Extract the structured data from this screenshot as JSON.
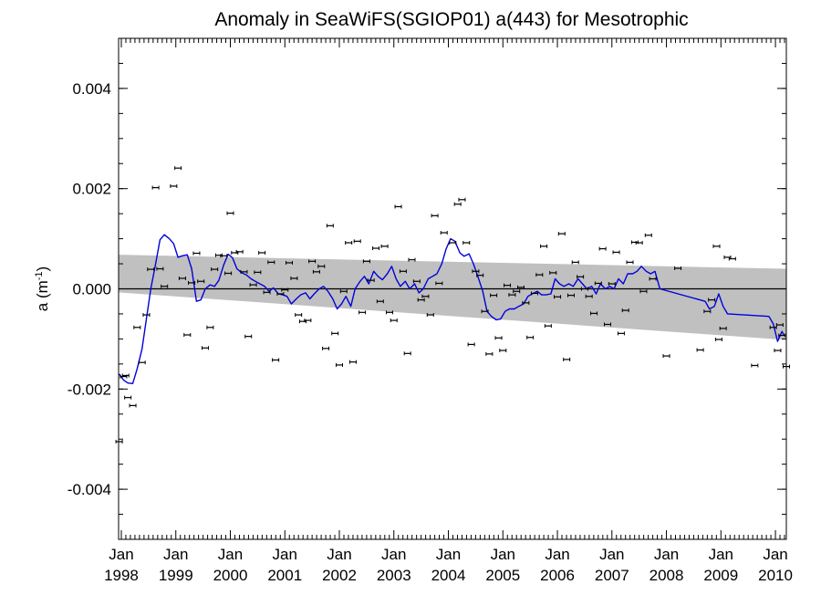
{
  "chart_data": {
    "type": "scatter",
    "title": "Anomaly in SeaWiFS(SGIOP01) a(443) for Mesotrophic",
    "ylabel": "a (m",
    "ylabel_sup": "-1",
    "ylabel_close": ")",
    "ylim": [
      -0.005,
      0.005
    ],
    "xlim": [
      1997.95,
      2010.2
    ],
    "y_ticks": [
      {
        "value": 0.004,
        "label": "0.004"
      },
      {
        "value": 0.002,
        "label": "0.002"
      },
      {
        "value": 0.0,
        "label": "0.000"
      },
      {
        "value": -0.002,
        "label": "-0.002"
      },
      {
        "value": -0.004,
        "label": "-0.004"
      }
    ],
    "x_ticks": [
      {
        "value": 1998,
        "month": "Jan",
        "year": "1998"
      },
      {
        "value": 1999,
        "month": "Jan",
        "year": "1999"
      },
      {
        "value": 2000,
        "month": "Jan",
        "year": "2000"
      },
      {
        "value": 2001,
        "month": "Jan",
        "year": "2001"
      },
      {
        "value": 2002,
        "month": "Jan",
        "year": "2002"
      },
      {
        "value": 2003,
        "month": "Jan",
        "year": "2003"
      },
      {
        "value": 2004,
        "month": "Jan",
        "year": "2004"
      },
      {
        "value": 2005,
        "month": "Jan",
        "year": "2005"
      },
      {
        "value": 2006,
        "month": "Jan",
        "year": "2006"
      },
      {
        "value": 2007,
        "month": "Jan",
        "year": "2007"
      },
      {
        "value": 2008,
        "month": "Jan",
        "year": "2008"
      },
      {
        "value": 2009,
        "month": "Jan",
        "year": "2009"
      },
      {
        "value": 2010,
        "month": "Jan",
        "year": "2010"
      }
    ],
    "colors": {
      "smooth_line": "#0000dd",
      "band": "#c0c0c0",
      "points": "#000000",
      "zero_line": "#000000"
    },
    "confidence_band": {
      "x": [
        1997.95,
        2010.2
      ],
      "upper": [
        0.00068,
        0.0004
      ],
      "lower": [
        -7e-05,
        -0.00102
      ]
    },
    "points": [
      {
        "x": 1997.96,
        "y": -0.00305
      },
      {
        "x": 1998.04,
        "y": -0.00175
      },
      {
        "x": 1998.08,
        "y": -0.00173
      },
      {
        "x": 1998.12,
        "y": -0.00217
      },
      {
        "x": 1998.21,
        "y": -0.00233
      },
      {
        "x": 1998.29,
        "y": -0.00077
      },
      {
        "x": 1998.38,
        "y": -0.00147
      },
      {
        "x": 1998.46,
        "y": -0.00052
      },
      {
        "x": 1998.54,
        "y": 0.00039
      },
      {
        "x": 1998.63,
        "y": 0.00202
      },
      {
        "x": 1998.71,
        "y": 0.0004
      },
      {
        "x": 1998.79,
        "y": 5e-05
      },
      {
        "x": 1998.96,
        "y": 0.00205
      },
      {
        "x": 1999.04,
        "y": 0.00241
      },
      {
        "x": 1999.12,
        "y": 0.00021
      },
      {
        "x": 1999.21,
        "y": -0.00092
      },
      {
        "x": 1999.29,
        "y": 0.00012
      },
      {
        "x": 1999.38,
        "y": 0.00071
      },
      {
        "x": 1999.46,
        "y": 0.00015
      },
      {
        "x": 1999.54,
        "y": -0.00118
      },
      {
        "x": 1999.63,
        "y": -0.00077
      },
      {
        "x": 1999.71,
        "y": 0.00039
      },
      {
        "x": 1999.79,
        "y": 0.00067
      },
      {
        "x": 1999.88,
        "y": 0.00066
      },
      {
        "x": 1999.96,
        "y": 0.00031
      },
      {
        "x": 2000.0,
        "y": 0.00151
      },
      {
        "x": 2000.08,
        "y": 0.00072
      },
      {
        "x": 2000.17,
        "y": 0.00074
      },
      {
        "x": 2000.25,
        "y": 0.00034
      },
      {
        "x": 2000.33,
        "y": -0.00095
      },
      {
        "x": 2000.42,
        "y": 8e-05
      },
      {
        "x": 2000.5,
        "y": 0.00033
      },
      {
        "x": 2000.58,
        "y": 0.00072
      },
      {
        "x": 2000.67,
        "y": -7e-05
      },
      {
        "x": 2000.75,
        "y": 0.00053
      },
      {
        "x": 2000.83,
        "y": -0.00142
      },
      {
        "x": 2000.92,
        "y": -0.0001
      },
      {
        "x": 2001.0,
        "y": -2e-05
      },
      {
        "x": 2001.08,
        "y": 0.00052
      },
      {
        "x": 2001.17,
        "y": 0.00021
      },
      {
        "x": 2001.25,
        "y": -0.00052
      },
      {
        "x": 2001.33,
        "y": -0.00065
      },
      {
        "x": 2001.42,
        "y": -0.00063
      },
      {
        "x": 2001.5,
        "y": 0.00055
      },
      {
        "x": 2001.58,
        "y": 0.00034
      },
      {
        "x": 2001.67,
        "y": 0.00045
      },
      {
        "x": 2001.75,
        "y": -0.00119
      },
      {
        "x": 2001.83,
        "y": 0.00126
      },
      {
        "x": 2001.92,
        "y": -0.00089
      },
      {
        "x": 2002.0,
        "y": -0.00152
      },
      {
        "x": 2002.08,
        "y": -5e-05
      },
      {
        "x": 2002.17,
        "y": 0.00092
      },
      {
        "x": 2002.25,
        "y": -0.00146
      },
      {
        "x": 2002.33,
        "y": 0.00095
      },
      {
        "x": 2002.42,
        "y": -0.00047
      },
      {
        "x": 2002.5,
        "y": 0.00055
      },
      {
        "x": 2002.58,
        "y": 0.00017
      },
      {
        "x": 2002.67,
        "y": 0.00081
      },
      {
        "x": 2002.75,
        "y": -0.00025
      },
      {
        "x": 2002.83,
        "y": 0.00085
      },
      {
        "x": 2002.92,
        "y": -0.00047
      },
      {
        "x": 2003.0,
        "y": -0.00063
      },
      {
        "x": 2003.08,
        "y": 0.00164
      },
      {
        "x": 2003.17,
        "y": 0.00035
      },
      {
        "x": 2003.25,
        "y": -0.00129
      },
      {
        "x": 2003.33,
        "y": 0.00058
      },
      {
        "x": 2003.42,
        "y": 0.00015
      },
      {
        "x": 2003.5,
        "y": -0.00022
      },
      {
        "x": 2003.58,
        "y": -0.00015
      },
      {
        "x": 2003.67,
        "y": -0.00052
      },
      {
        "x": 2003.75,
        "y": 0.00146
      },
      {
        "x": 2003.83,
        "y": 0.00011
      },
      {
        "x": 2003.92,
        "y": 0.00112
      },
      {
        "x": 2004.08,
        "y": 0.00092
      },
      {
        "x": 2004.17,
        "y": 0.00169
      },
      {
        "x": 2004.25,
        "y": 0.00178
      },
      {
        "x": 2004.33,
        "y": 0.00092
      },
      {
        "x": 2004.42,
        "y": -0.00111
      },
      {
        "x": 2004.5,
        "y": 0.00035
      },
      {
        "x": 2004.58,
        "y": 0.00027
      },
      {
        "x": 2004.67,
        "y": -0.00045
      },
      {
        "x": 2004.75,
        "y": -0.0013
      },
      {
        "x": 2004.83,
        "y": -0.00013
      },
      {
        "x": 2004.92,
        "y": -0.00098
      },
      {
        "x": 2005.0,
        "y": -0.00123
      },
      {
        "x": 2005.08,
        "y": 7e-05
      },
      {
        "x": 2005.17,
        "y": -0.00012
      },
      {
        "x": 2005.25,
        "y": -5e-05
      },
      {
        "x": 2005.33,
        "y": 3e-05
      },
      {
        "x": 2005.42,
        "y": -0.00028
      },
      {
        "x": 2005.5,
        "y": -0.00097
      },
      {
        "x": 2005.58,
        "y": -9e-05
      },
      {
        "x": 2005.67,
        "y": 0.00028
      },
      {
        "x": 2005.75,
        "y": 0.00085
      },
      {
        "x": 2005.83,
        "y": -0.00074
      },
      {
        "x": 2005.92,
        "y": 0.00032
      },
      {
        "x": 2006.0,
        "y": -0.00016
      },
      {
        "x": 2006.08,
        "y": 0.0011
      },
      {
        "x": 2006.17,
        "y": -0.00141
      },
      {
        "x": 2006.25,
        "y": -0.00013
      },
      {
        "x": 2006.33,
        "y": 0.00053
      },
      {
        "x": 2006.42,
        "y": 0.00024
      },
      {
        "x": 2006.5,
        "y": 0.0
      },
      {
        "x": 2006.58,
        "y": -0.00015
      },
      {
        "x": 2006.67,
        "y": -0.00049
      },
      {
        "x": 2006.75,
        "y": 0.00011
      },
      {
        "x": 2006.83,
        "y": 0.0008
      },
      {
        "x": 2006.92,
        "y": -0.00071
      },
      {
        "x": 2007.0,
        "y": 0.0001
      },
      {
        "x": 2007.08,
        "y": 0.00073
      },
      {
        "x": 2007.17,
        "y": -0.00089
      },
      {
        "x": 2007.25,
        "y": -0.00043
      },
      {
        "x": 2007.33,
        "y": 0.00053
      },
      {
        "x": 2007.42,
        "y": 0.00093
      },
      {
        "x": 2007.5,
        "y": 0.00092
      },
      {
        "x": 2007.58,
        "y": -5e-05
      },
      {
        "x": 2007.67,
        "y": 0.00107
      },
      {
        "x": 2007.75,
        "y": 0.0002
      },
      {
        "x": 2008.0,
        "y": -0.00134
      },
      {
        "x": 2008.21,
        "y": 0.00041
      },
      {
        "x": 2008.62,
        "y": -0.00122
      },
      {
        "x": 2008.75,
        "y": -0.00045
      },
      {
        "x": 2008.83,
        "y": -0.00022
      },
      {
        "x": 2008.92,
        "y": 0.00085
      },
      {
        "x": 2008.96,
        "y": -0.00101
      },
      {
        "x": 2009.04,
        "y": -0.00079
      },
      {
        "x": 2009.12,
        "y": 0.00063
      },
      {
        "x": 2009.21,
        "y": 0.0006
      },
      {
        "x": 2009.62,
        "y": -0.00153
      },
      {
        "x": 2009.96,
        "y": -0.00077
      },
      {
        "x": 2010.04,
        "y": -0.00123
      },
      {
        "x": 2010.08,
        "y": -0.00072
      },
      {
        "x": 2010.12,
        "y": -0.00093
      },
      {
        "x": 2010.2,
        "y": -0.00155
      }
    ],
    "smooth_line": [
      {
        "x": 1997.96,
        "y": -0.0017
      },
      {
        "x": 1998.04,
        "y": -0.00182
      },
      {
        "x": 1998.12,
        "y": -0.00188
      },
      {
        "x": 1998.21,
        "y": -0.00189
      },
      {
        "x": 1998.29,
        "y": -0.0016
      },
      {
        "x": 1998.38,
        "y": -0.0012
      },
      {
        "x": 1998.46,
        "y": -0.0006
      },
      {
        "x": 1998.54,
        "y": 0.0
      },
      {
        "x": 1998.63,
        "y": 0.0005
      },
      {
        "x": 1998.71,
        "y": 0.00098
      },
      {
        "x": 1998.79,
        "y": 0.00108
      },
      {
        "x": 1998.88,
        "y": 0.001
      },
      {
        "x": 1998.96,
        "y": 0.0009
      },
      {
        "x": 1999.04,
        "y": 0.00063
      },
      {
        "x": 1999.12,
        "y": 0.00066
      },
      {
        "x": 1999.21,
        "y": 0.00068
      },
      {
        "x": 1999.29,
        "y": 0.0004
      },
      {
        "x": 1999.38,
        "y": -0.00025
      },
      {
        "x": 1999.46,
        "y": -0.00022
      },
      {
        "x": 1999.54,
        "y": 0.0
      },
      {
        "x": 1999.63,
        "y": 8e-05
      },
      {
        "x": 1999.71,
        "y": 5e-05
      },
      {
        "x": 1999.79,
        "y": 0.00017
      },
      {
        "x": 1999.88,
        "y": 0.00048
      },
      {
        "x": 1999.96,
        "y": 0.00069
      },
      {
        "x": 2000.04,
        "y": 0.00062
      },
      {
        "x": 2000.12,
        "y": 0.0004
      },
      {
        "x": 2000.21,
        "y": 0.00032
      },
      {
        "x": 2000.29,
        "y": 0.00028
      },
      {
        "x": 2000.38,
        "y": 0.0002
      },
      {
        "x": 2000.46,
        "y": 0.00015
      },
      {
        "x": 2000.54,
        "y": 0.0001
      },
      {
        "x": 2000.63,
        "y": 5e-05
      },
      {
        "x": 2000.71,
        "y": -5e-05
      },
      {
        "x": 2000.79,
        "y": 2e-05
      },
      {
        "x": 2000.88,
        "y": -0.0001
      },
      {
        "x": 2000.96,
        "y": -0.00012
      },
      {
        "x": 2001.04,
        "y": -0.00015
      },
      {
        "x": 2001.12,
        "y": -0.0003
      },
      {
        "x": 2001.21,
        "y": -0.0002
      },
      {
        "x": 2001.29,
        "y": -0.00012
      },
      {
        "x": 2001.38,
        "y": -8e-05
      },
      {
        "x": 2001.46,
        "y": -0.0002
      },
      {
        "x": 2001.54,
        "y": -0.0001
      },
      {
        "x": 2001.63,
        "y": 0.0
      },
      {
        "x": 2001.71,
        "y": 5e-05
      },
      {
        "x": 2001.79,
        "y": -5e-05
      },
      {
        "x": 2001.88,
        "y": -0.0002
      },
      {
        "x": 2001.96,
        "y": -0.0004
      },
      {
        "x": 2002.04,
        "y": -0.0003
      },
      {
        "x": 2002.12,
        "y": -0.00015
      },
      {
        "x": 2002.21,
        "y": -0.00035
      },
      {
        "x": 2002.29,
        "y": 0.0
      },
      {
        "x": 2002.38,
        "y": 0.00015
      },
      {
        "x": 2002.46,
        "y": 0.00025
      },
      {
        "x": 2002.54,
        "y": 0.0001
      },
      {
        "x": 2002.63,
        "y": 0.00035
      },
      {
        "x": 2002.71,
        "y": 0.00025
      },
      {
        "x": 2002.79,
        "y": 0.00018
      },
      {
        "x": 2002.88,
        "y": 0.0003
      },
      {
        "x": 2002.96,
        "y": 0.00045
      },
      {
        "x": 2003.04,
        "y": 0.0002
      },
      {
        "x": 2003.12,
        "y": 5e-05
      },
      {
        "x": 2003.21,
        "y": 0.00015
      },
      {
        "x": 2003.29,
        "y": 0.0
      },
      {
        "x": 2003.38,
        "y": 0.0001
      },
      {
        "x": 2003.46,
        "y": -8e-05
      },
      {
        "x": 2003.54,
        "y": 0.0
      },
      {
        "x": 2003.63,
        "y": 0.0002
      },
      {
        "x": 2003.71,
        "y": 0.00025
      },
      {
        "x": 2003.79,
        "y": 0.0003
      },
      {
        "x": 2003.88,
        "y": 0.0005
      },
      {
        "x": 2003.96,
        "y": 0.0008
      },
      {
        "x": 2004.04,
        "y": 0.001
      },
      {
        "x": 2004.12,
        "y": 0.00095
      },
      {
        "x": 2004.21,
        "y": 0.00072
      },
      {
        "x": 2004.29,
        "y": 0.00065
      },
      {
        "x": 2004.38,
        "y": 0.0007
      },
      {
        "x": 2004.46,
        "y": 0.0005
      },
      {
        "x": 2004.54,
        "y": 0.00025
      },
      {
        "x": 2004.63,
        "y": -5e-05
      },
      {
        "x": 2004.71,
        "y": -0.00045
      },
      {
        "x": 2004.79,
        "y": -0.00055
      },
      {
        "x": 2004.88,
        "y": -0.00062
      },
      {
        "x": 2004.96,
        "y": -0.0006
      },
      {
        "x": 2005.04,
        "y": -0.00045
      },
      {
        "x": 2005.12,
        "y": -0.0004
      },
      {
        "x": 2005.21,
        "y": -0.0004
      },
      {
        "x": 2005.29,
        "y": -0.00035
      },
      {
        "x": 2005.38,
        "y": -0.0003
      },
      {
        "x": 2005.46,
        "y": -0.00015
      },
      {
        "x": 2005.54,
        "y": -0.0001
      },
      {
        "x": 2005.63,
        "y": -5e-05
      },
      {
        "x": 2005.71,
        "y": -0.00012
      },
      {
        "x": 2005.79,
        "y": -0.00012
      },
      {
        "x": 2005.88,
        "y": -0.0001
      },
      {
        "x": 2005.96,
        "y": 0.0002
      },
      {
        "x": 2006.04,
        "y": 0.0001
      },
      {
        "x": 2006.12,
        "y": 5e-05
      },
      {
        "x": 2006.21,
        "y": 0.0001
      },
      {
        "x": 2006.29,
        "y": 5e-05
      },
      {
        "x": 2006.38,
        "y": 0.0002
      },
      {
        "x": 2006.46,
        "y": 0.0001
      },
      {
        "x": 2006.54,
        "y": 0.0
      },
      {
        "x": 2006.63,
        "y": 5e-05
      },
      {
        "x": 2006.71,
        "y": -0.0001
      },
      {
        "x": 2006.79,
        "y": 0.0001
      },
      {
        "x": 2006.88,
        "y": 0.0
      },
      {
        "x": 2006.96,
        "y": 5e-05
      },
      {
        "x": 2007.04,
        "y": 0.0
      },
      {
        "x": 2007.12,
        "y": 0.0002
      },
      {
        "x": 2007.21,
        "y": 0.0001
      },
      {
        "x": 2007.29,
        "y": 0.0003
      },
      {
        "x": 2007.38,
        "y": 0.0003
      },
      {
        "x": 2007.46,
        "y": 0.00035
      },
      {
        "x": 2007.54,
        "y": 0.00045
      },
      {
        "x": 2007.63,
        "y": 0.00035
      },
      {
        "x": 2007.71,
        "y": 0.0003
      },
      {
        "x": 2007.79,
        "y": 0.00035
      },
      {
        "x": 2007.88,
        "y": 0.0
      },
      {
        "x": 2008.71,
        "y": -0.00025
      },
      {
        "x": 2008.79,
        "y": -0.0004
      },
      {
        "x": 2008.88,
        "y": -0.00035
      },
      {
        "x": 2008.96,
        "y": -0.0001
      },
      {
        "x": 2009.04,
        "y": -0.00035
      },
      {
        "x": 2009.12,
        "y": -0.0005
      },
      {
        "x": 2009.88,
        "y": -0.00055
      },
      {
        "x": 2009.96,
        "y": -0.0007
      },
      {
        "x": 2010.04,
        "y": -0.00105
      },
      {
        "x": 2010.12,
        "y": -0.00085
      },
      {
        "x": 2010.16,
        "y": -0.00093
      }
    ]
  }
}
